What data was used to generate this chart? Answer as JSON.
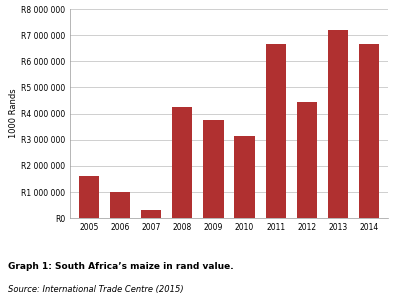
{
  "years": [
    "2005",
    "2006",
    "2007",
    "2008",
    "2009",
    "2010",
    "2011",
    "2012",
    "2013",
    "2014"
  ],
  "values": [
    1600000,
    1000000,
    300000,
    4250000,
    3750000,
    3150000,
    6650000,
    4450000,
    7200000,
    6650000
  ],
  "bar_color": "#b03030",
  "ylim": [
    0,
    8000000
  ],
  "yticks": [
    0,
    1000000,
    2000000,
    3000000,
    4000000,
    5000000,
    6000000,
    7000000,
    8000000
  ],
  "ytick_labels": [
    "R0",
    "R1 000 000",
    "R2 000 000",
    "R3 000 000",
    "R4 000 000",
    "R5 000 000",
    "R6 000 000",
    "R7 000 000",
    "R8 000 000"
  ],
  "ylabel": "1000 Rands",
  "title": "Graph 1: South Africa’s maize in rand value.",
  "source": "Source: International Trade Centre (2015)",
  "background_color": "#ffffff",
  "grid_color": "#c8c8c8"
}
